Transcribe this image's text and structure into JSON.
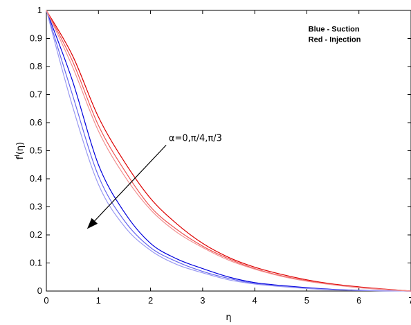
{
  "chart_data": {
    "type": "line",
    "title": "",
    "xlabel": "η",
    "ylabel_main": "f",
    "ylabel_sup": "l",
    "ylabel_tail": "(η)",
    "xlim": [
      0,
      7
    ],
    "ylim": [
      0,
      1
    ],
    "grid": false,
    "x_ticks": [
      0,
      1,
      2,
      3,
      4,
      5,
      6,
      7
    ],
    "y_ticks": [
      0,
      0.1,
      0.2,
      0.3,
      0.4,
      0.5,
      0.6,
      0.7,
      0.8,
      0.9,
      1
    ],
    "legend": {
      "placement": "top-right",
      "lines": [
        "Blue - Suction",
        "Red - Injection"
      ]
    },
    "annotation": {
      "text": "α=0,π/4,π/3",
      "arrow_from": [
        2.3,
        0.52
      ],
      "arrow_to": [
        0.8,
        0.225
      ]
    },
    "x": [
      0,
      0.5,
      1,
      1.5,
      2,
      2.5,
      3,
      3.5,
      4,
      4.5,
      5,
      5.5,
      6,
      6.5,
      7
    ],
    "series": [
      {
        "group": "suction",
        "color": "#0000dd",
        "values": [
          1,
          0.75,
          0.45,
          0.28,
          0.17,
          0.115,
          0.08,
          0.05,
          0.03,
          0.02,
          0.012,
          0.006,
          0.003,
          0.001,
          0
        ]
      },
      {
        "group": "suction",
        "color": "#6666ee",
        "values": [
          1,
          0.7,
          0.41,
          0.25,
          0.155,
          0.105,
          0.07,
          0.045,
          0.027,
          0.018,
          0.01,
          0.005,
          0.002,
          0.001,
          0
        ]
      },
      {
        "group": "suction",
        "color": "#9a9af2",
        "values": [
          1,
          0.66,
          0.38,
          0.23,
          0.145,
          0.095,
          0.065,
          0.04,
          0.025,
          0.016,
          0.009,
          0.004,
          0.002,
          0.001,
          0
        ]
      },
      {
        "group": "injection",
        "color": "#dd0000",
        "values": [
          1,
          0.84,
          0.62,
          0.46,
          0.33,
          0.24,
          0.17,
          0.12,
          0.085,
          0.06,
          0.04,
          0.025,
          0.015,
          0.007,
          0
        ]
      },
      {
        "group": "injection",
        "color": "#ee5555",
        "values": [
          1,
          0.82,
          0.59,
          0.43,
          0.3,
          0.22,
          0.16,
          0.115,
          0.08,
          0.055,
          0.037,
          0.023,
          0.013,
          0.006,
          0
        ]
      },
      {
        "group": "injection",
        "color": "#f29090",
        "values": [
          1,
          0.8,
          0.57,
          0.41,
          0.29,
          0.21,
          0.155,
          0.11,
          0.078,
          0.053,
          0.035,
          0.022,
          0.012,
          0.005,
          0
        ]
      }
    ]
  }
}
